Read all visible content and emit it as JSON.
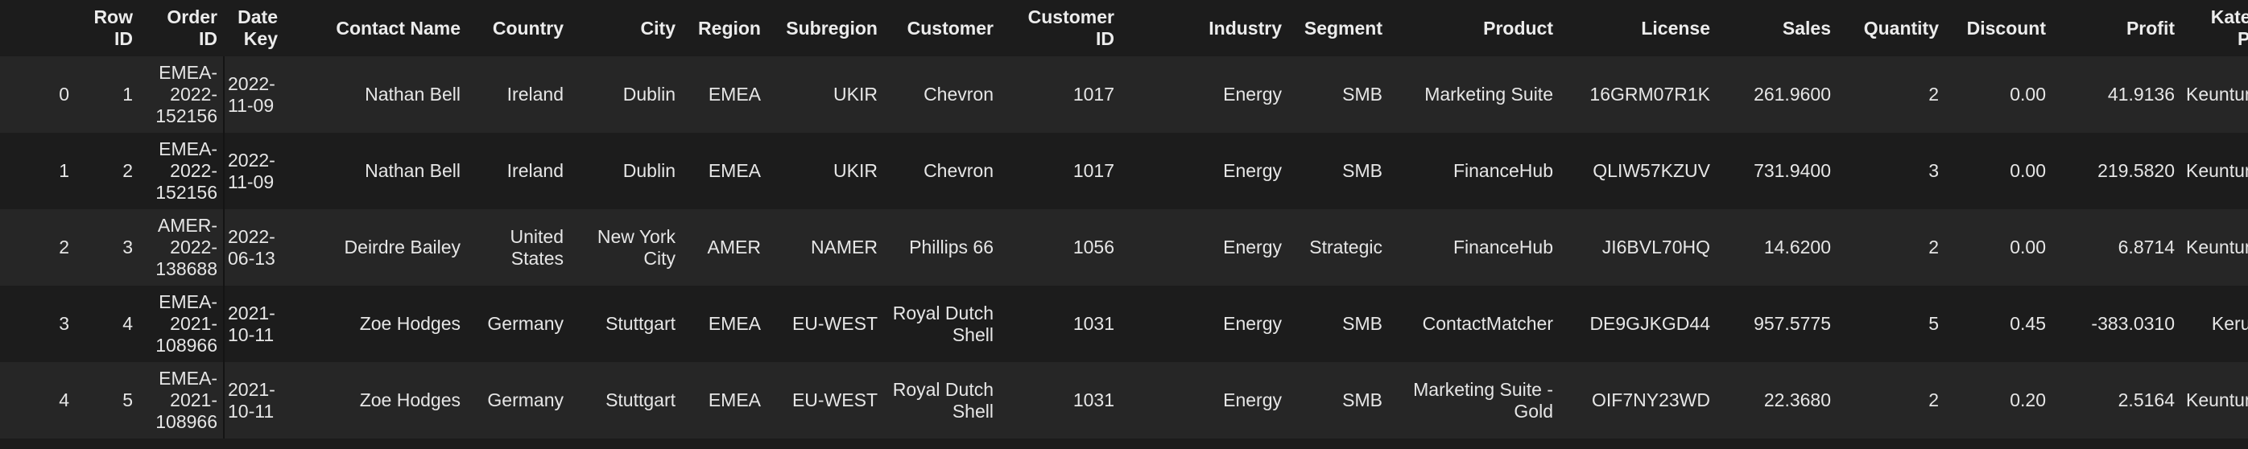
{
  "table": {
    "columns": [
      {
        "key": "index",
        "label": ""
      },
      {
        "key": "row_id",
        "label": "Row ID"
      },
      {
        "key": "order_id",
        "label": "Order ID"
      },
      {
        "key": "date_key",
        "label": "Date Key"
      },
      {
        "key": "contact_name",
        "label": "Contact Name"
      },
      {
        "key": "country",
        "label": "Country"
      },
      {
        "key": "city",
        "label": "City"
      },
      {
        "key": "region",
        "label": "Region"
      },
      {
        "key": "subregion",
        "label": "Subregion"
      },
      {
        "key": "customer",
        "label": "Customer"
      },
      {
        "key": "customer_id",
        "label": "Customer ID"
      },
      {
        "key": "industry",
        "label": "Industry"
      },
      {
        "key": "segment",
        "label": "Segment"
      },
      {
        "key": "product",
        "label": "Product"
      },
      {
        "key": "license",
        "label": "License"
      },
      {
        "key": "sales",
        "label": "Sales"
      },
      {
        "key": "quantity",
        "label": "Quantity"
      },
      {
        "key": "discount",
        "label": "Discount"
      },
      {
        "key": "profit",
        "label": "Profit"
      },
      {
        "key": "kategori_profit",
        "label": "Kategori Profit"
      }
    ],
    "rows": [
      {
        "index": "0",
        "row_id": "1",
        "order_id": "EMEA-2022-152156",
        "date_key": "2022-11-09",
        "contact_name": "Nathan Bell",
        "country": "Ireland",
        "city": "Dublin",
        "region": "EMEA",
        "subregion": "UKIR",
        "customer": "Chevron",
        "customer_id": "1017",
        "industry": "Energy",
        "segment": "SMB",
        "product": "Marketing Suite",
        "license": "16GRM07R1K",
        "sales": "261.9600",
        "quantity": "2",
        "discount": "0.00",
        "profit": "41.9136",
        "kategori_profit": "Keuntungan"
      },
      {
        "index": "1",
        "row_id": "2",
        "order_id": "EMEA-2022-152156",
        "date_key": "2022-11-09",
        "contact_name": "Nathan Bell",
        "country": "Ireland",
        "city": "Dublin",
        "region": "EMEA",
        "subregion": "UKIR",
        "customer": "Chevron",
        "customer_id": "1017",
        "industry": "Energy",
        "segment": "SMB",
        "product": "FinanceHub",
        "license": "QLIW57KZUV",
        "sales": "731.9400",
        "quantity": "3",
        "discount": "0.00",
        "profit": "219.5820",
        "kategori_profit": "Keuntungan"
      },
      {
        "index": "2",
        "row_id": "3",
        "order_id": "AMER-2022-138688",
        "date_key": "2022-06-13",
        "contact_name": "Deirdre Bailey",
        "country": "United States",
        "city": "New York City",
        "region": "AMER",
        "subregion": "NAMER",
        "customer": "Phillips 66",
        "customer_id": "1056",
        "industry": "Energy",
        "segment": "Strategic",
        "product": "FinanceHub",
        "license": "JI6BVL70HQ",
        "sales": "14.6200",
        "quantity": "2",
        "discount": "0.00",
        "profit": "6.8714",
        "kategori_profit": "Keuntungan"
      },
      {
        "index": "3",
        "row_id": "4",
        "order_id": "EMEA-2021-108966",
        "date_key": "2021-10-11",
        "contact_name": "Zoe Hodges",
        "country": "Germany",
        "city": "Stuttgart",
        "region": "EMEA",
        "subregion": "EU-WEST",
        "customer": "Royal Dutch Shell",
        "customer_id": "1031",
        "industry": "Energy",
        "segment": "SMB",
        "product": "ContactMatcher",
        "license": "DE9GJKGD44",
        "sales": "957.5775",
        "quantity": "5",
        "discount": "0.45",
        "profit": "-383.0310",
        "kategori_profit": "Kerugian"
      },
      {
        "index": "4",
        "row_id": "5",
        "order_id": "EMEA-2021-108966",
        "date_key": "2021-10-11",
        "contact_name": "Zoe Hodges",
        "country": "Germany",
        "city": "Stuttgart",
        "region": "EMEA",
        "subregion": "EU-WEST",
        "customer": "Royal Dutch Shell",
        "customer_id": "1031",
        "industry": "Energy",
        "segment": "SMB",
        "product": "Marketing Suite - Gold",
        "license": "OIF7NY23WD",
        "sales": "22.3680",
        "quantity": "2",
        "discount": "0.20",
        "profit": "2.5164",
        "kategori_profit": "Keuntungan"
      }
    ]
  }
}
